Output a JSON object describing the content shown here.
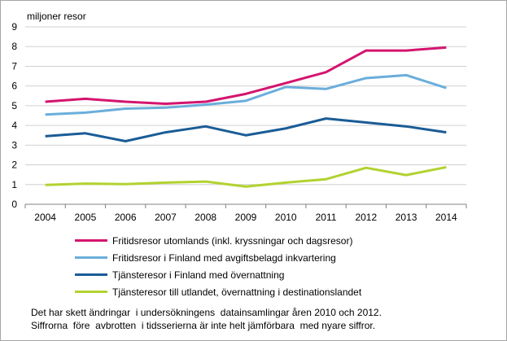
{
  "chart_data": {
    "type": "line",
    "title": "",
    "ylabel": "miljoner resor",
    "xlabel": "",
    "categories": [
      "2004",
      "2005",
      "2006",
      "2007",
      "2008",
      "2009",
      "2010",
      "2011",
      "2012",
      "2013",
      "2014"
    ],
    "ylim": [
      0,
      9
    ],
    "yticks": [
      0,
      1,
      2,
      3,
      4,
      5,
      6,
      7,
      8,
      9
    ],
    "grid": true,
    "legend_position": "bottom",
    "series": [
      {
        "name": "Fritidsresor utomlands (inkl. kryssningar och dagsresor)",
        "color": "#d4146e",
        "values": [
          5.2,
          5.35,
          5.2,
          5.1,
          5.2,
          5.6,
          6.15,
          6.7,
          7.8,
          7.8,
          7.95
        ]
      },
      {
        "name": "Fritidsresor i Finland med avgiftsbelagd inkvartering",
        "color": "#6aaedb",
        "values": [
          4.55,
          4.65,
          4.85,
          4.9,
          5.05,
          5.25,
          5.95,
          5.85,
          6.4,
          6.55,
          5.9
        ]
      },
      {
        "name": "Tjänsteresor i Finland med övernattning",
        "color": "#1a5c96",
        "values": [
          3.45,
          3.6,
          3.2,
          3.65,
          3.95,
          3.5,
          3.85,
          4.35,
          4.15,
          3.95,
          3.65
        ]
      },
      {
        "name": "Tjänsteresor till utlandet, övernattning i destinationslandet",
        "color": "#b2d230",
        "values": [
          0.98,
          1.05,
          1.02,
          1.1,
          1.15,
          0.9,
          1.1,
          1.27,
          1.85,
          1.48,
          1.88
        ]
      }
    ]
  },
  "footnote": {
    "line1": "Det har skett ändringar  i undersökningens  datainsamlingar åren 2010 och 2012.",
    "line2": "Siffrorna  före  avbrotten  i tidsserierna är inte helt jämförbara  med nyare siffror."
  }
}
